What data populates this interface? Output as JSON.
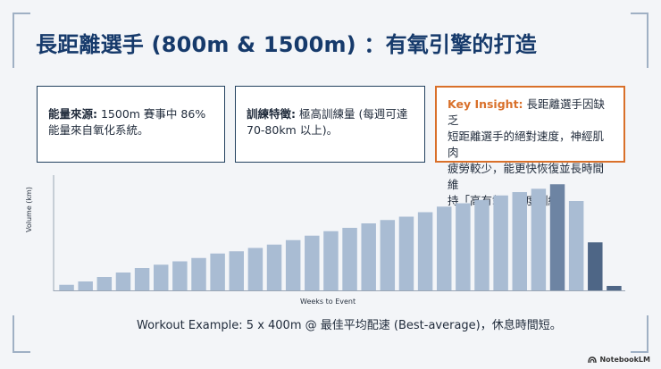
{
  "title": "長距離選手 (800m & 1500m) ：有氧引擎的打造",
  "cards": {
    "energy": {
      "label": "能量來源:",
      "text_line1": " 1500m 賽事中 86%",
      "text_line2": "能量來自氧化系統。"
    },
    "training": {
      "label": "訓練特徵:",
      "text_line1": " 極高訓練量 (每週可達",
      "text_line2": "70-80km 以上)。"
    },
    "insight": {
      "label": "Key Insight:",
      "line1": " 長距離選手因缺乏",
      "line2": "短距離選手的絕對速度，神經肌肉",
      "line3": "疲勞較少，能更快恢復並長時間維",
      "line4": "持「高有氧」強度訓練。"
    }
  },
  "colors": {
    "bar": "#a9bcd3",
    "bar_peak": "#6d84a3",
    "bar_taper": "#4e6686",
    "accent": "#d9702a",
    "title": "#163a6b"
  },
  "chart_data": {
    "type": "bar",
    "xlabel": "Weeks to Event",
    "ylabel": "Volume (km)",
    "ylim": [
      0,
      100
    ],
    "grid": false,
    "values": [
      5,
      8,
      12,
      16,
      20,
      23,
      26,
      29,
      33,
      35,
      38,
      41,
      45,
      49,
      53,
      56,
      60,
      63,
      66,
      70,
      75,
      78,
      81,
      85,
      88,
      91,
      95,
      80,
      43,
      4
    ],
    "highlight_indices": [
      26,
      28
    ]
  },
  "workout": "Workout Example: 5 x 400m @ 最佳平均配速 (Best-average)，休息時間短。",
  "brand": "NotebookLM"
}
